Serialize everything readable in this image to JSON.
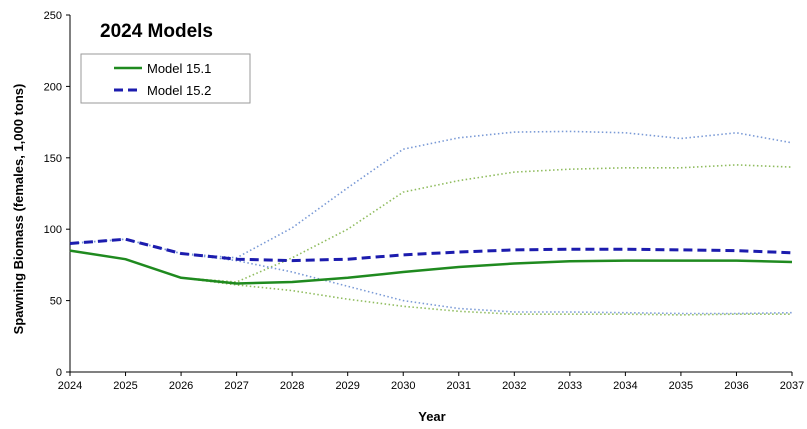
{
  "chart_data": {
    "type": "line",
    "title": "2024 Models",
    "xlabel": "Year",
    "ylabel": "Spawning Biomass (females, 1,000 tons)",
    "x": [
      2024,
      2025,
      2026,
      2027,
      2028,
      2029,
      2030,
      2031,
      2032,
      2033,
      2034,
      2035,
      2036,
      2037
    ],
    "xlim": [
      2024,
      2037
    ],
    "ylim": [
      0,
      250
    ],
    "yticks": [
      0,
      50,
      100,
      150,
      200,
      250
    ],
    "grid": false,
    "legend_position": "top-left",
    "series": [
      {
        "name": "Model 15.1",
        "color": "#1f8a1f",
        "style": "solid",
        "values": [
          85,
          79,
          66,
          62,
          63,
          66,
          70,
          73.5,
          76,
          77.5,
          78,
          78,
          78,
          77
        ]
      },
      {
        "name": "Model 15.2",
        "color": "#1c1cae",
        "style": "dashed",
        "values": [
          90,
          93,
          83,
          79,
          78,
          79,
          82,
          84,
          85.5,
          86,
          86,
          85.5,
          85,
          83.5
        ]
      },
      {
        "color": "#8fbc5e",
        "style": "dotted",
        "values": [
          85,
          79,
          66,
          63,
          80,
          100,
          126,
          134,
          140,
          142,
          143,
          143,
          145,
          143.5
        ]
      },
      {
        "color": "#8fbc5e",
        "style": "dotted",
        "values": [
          85,
          79,
          66,
          61,
          57,
          51,
          46,
          42.5,
          40.5,
          40.5,
          40.5,
          40,
          40.5,
          40.5
        ]
      },
      {
        "color": "#7a9ad6",
        "style": "dotted",
        "values": [
          90,
          93,
          83,
          80,
          101,
          129,
          156,
          164,
          168,
          168.5,
          167.5,
          163.5,
          167.5,
          160.5
        ]
      },
      {
        "color": "#7a9ad6",
        "style": "dotted",
        "values": [
          90,
          93,
          83,
          78,
          70,
          60,
          50,
          44.5,
          42,
          42,
          41.5,
          41,
          41,
          41.5
        ]
      }
    ]
  }
}
